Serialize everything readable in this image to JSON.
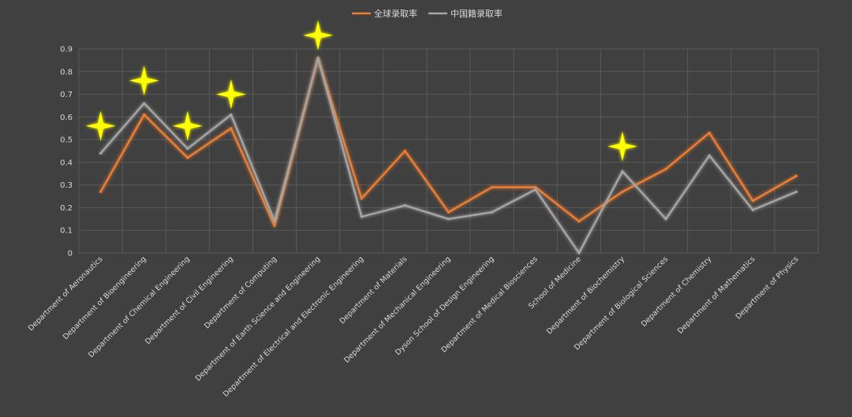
{
  "chart_data": {
    "type": "line",
    "title": "",
    "xlabel": "",
    "ylabel": "",
    "ylim": [
      0,
      0.9
    ],
    "yticks": [
      "0",
      "0.1",
      "0.2",
      "0.3",
      "0.4",
      "0.5",
      "0.6",
      "0.7",
      "0.8",
      "0.9"
    ],
    "grid": true,
    "legend_position": "top-center",
    "categories": [
      "Department of Aeronautics",
      "Department of Bioengineering",
      "Department of Chemical Engineering",
      "Department of Civil Engineering",
      "Department of Computing",
      "Department of Earth Science and Engineering",
      "Department of Electrical and Electronic Engineering",
      "Department of Materials",
      "Department of Mechanical Engineering",
      "Dyson School of Design Engineering",
      "Department of Medical Biosciences",
      "School of Medicine",
      "Department of Biochemistry",
      "Department of Biological Sciences",
      "Department of Chemistry",
      "Department of Mathematics",
      "Department of Physics"
    ],
    "series": [
      {
        "name": "全球录取率",
        "color": "#ed7d31",
        "values": [
          0.27,
          0.61,
          0.42,
          0.55,
          0.12,
          0.86,
          0.24,
          0.45,
          0.18,
          0.29,
          0.29,
          0.14,
          0.27,
          0.37,
          0.53,
          0.23,
          0.34
        ]
      },
      {
        "name": "中国籍录取率",
        "color": "#a5a5a5",
        "values": [
          0.44,
          0.66,
          0.46,
          0.61,
          0.14,
          0.86,
          0.16,
          0.21,
          0.15,
          0.18,
          0.28,
          0.0,
          0.36,
          0.15,
          0.43,
          0.19,
          0.27
        ]
      }
    ],
    "star_markers": [
      {
        "category": "Department of Aeronautics",
        "value": 0.56
      },
      {
        "category": "Department of Bioengineering",
        "value": 0.76
      },
      {
        "category": "Department of Chemical Engineering",
        "value": 0.56
      },
      {
        "category": "Department of Civil Engineering",
        "value": 0.7
      },
      {
        "category": "Department of Earth Science and Engineering",
        "value": 0.96
      },
      {
        "category": "Department of Biochemistry",
        "value": 0.47
      }
    ],
    "star_color": "#ffff00"
  }
}
